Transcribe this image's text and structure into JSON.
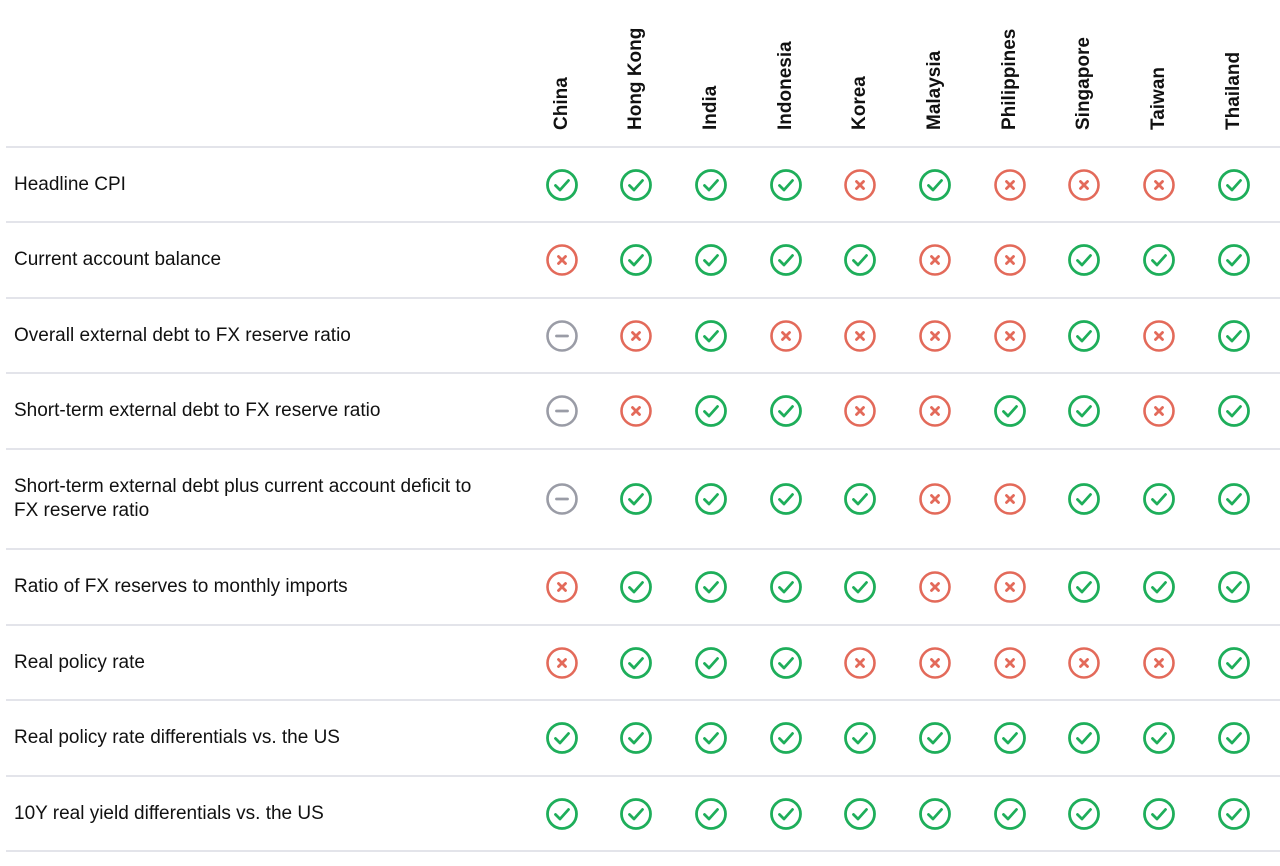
{
  "chart_data": {
    "type": "table",
    "legend_states": {
      "check": "#1eae5a",
      "cross": "#e36a5a",
      "neutral": "#9a9ca6"
    },
    "columns": [
      "China",
      "Hong Kong",
      "India",
      "Indonesia",
      "Korea",
      "Malaysia",
      "Philippines",
      "Singapore",
      "Taiwan",
      "Thailand"
    ],
    "rows": [
      {
        "label": "Headline CPI",
        "values": [
          "check",
          "check",
          "check",
          "check",
          "cross",
          "check",
          "cross",
          "cross",
          "cross",
          "check"
        ]
      },
      {
        "label": "Current account balance",
        "values": [
          "cross",
          "check",
          "check",
          "check",
          "check",
          "cross",
          "cross",
          "check",
          "check",
          "check"
        ]
      },
      {
        "label": "Overall external debt to FX reserve ratio",
        "values": [
          "neutral",
          "cross",
          "check",
          "cross",
          "cross",
          "cross",
          "cross",
          "check",
          "cross",
          "check"
        ]
      },
      {
        "label": "Short-term external debt to FX reserve ratio",
        "values": [
          "neutral",
          "cross",
          "check",
          "check",
          "cross",
          "cross",
          "check",
          "check",
          "cross",
          "check"
        ]
      },
      {
        "label": "Short-term external debt plus current account deficit to\nFX reserve ratio",
        "values": [
          "neutral",
          "check",
          "check",
          "check",
          "check",
          "cross",
          "cross",
          "check",
          "check",
          "check"
        ]
      },
      {
        "label": "Ratio of FX reserves to monthly imports",
        "values": [
          "cross",
          "check",
          "check",
          "check",
          "check",
          "cross",
          "cross",
          "check",
          "check",
          "check"
        ]
      },
      {
        "label": "Real policy rate",
        "values": [
          "cross",
          "check",
          "check",
          "check",
          "cross",
          "cross",
          "cross",
          "cross",
          "cross",
          "check"
        ]
      },
      {
        "label": "Real policy rate differentials vs. the US",
        "values": [
          "check",
          "check",
          "check",
          "check",
          "check",
          "check",
          "check",
          "check",
          "check",
          "check"
        ]
      },
      {
        "label": "10Y real yield differentials vs. the US",
        "values": [
          "check",
          "check",
          "check",
          "check",
          "check",
          "check",
          "check",
          "check",
          "check",
          "check"
        ]
      }
    ]
  }
}
